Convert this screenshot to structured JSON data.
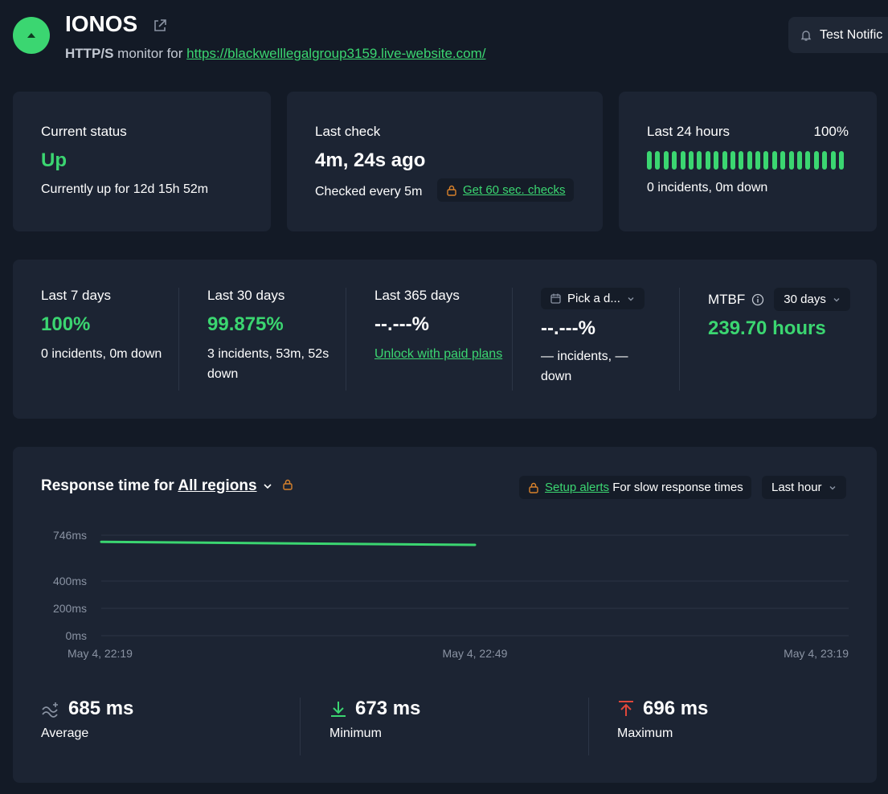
{
  "header": {
    "title": "IONOS",
    "protocol": "HTTP/S",
    "monitor_for": " monitor for ",
    "url": "https://blackwelllegalgroup3159.live-website.com/",
    "test_button": "Test Notific",
    "status_color": "#3bd671"
  },
  "current_status": {
    "label": "Current status",
    "value": "Up",
    "detail": "Currently up for 12d 15h 52m"
  },
  "last_check": {
    "label": "Last check",
    "value": "4m, 24s ago",
    "detail": "Checked every 5m",
    "upgrade_link": "Get 60 sec. checks"
  },
  "last_24h": {
    "label": "Last 24 hours",
    "percent": "100%",
    "detail": "0 incidents, 0m down",
    "bar_count": 24
  },
  "uptime": {
    "last7": {
      "label": "Last 7 days",
      "value": "100%",
      "detail": "0 incidents, 0m down"
    },
    "last30": {
      "label": "Last 30 days",
      "value": "99.875%",
      "detail": "3 incidents, 53m, 52s down"
    },
    "last365": {
      "label": "Last 365 days",
      "value": "--.---%",
      "link": "Unlock with paid plans"
    },
    "custom": {
      "picker": "Pick a d...",
      "value": "--.---%",
      "detail": "— incidents, — down"
    },
    "mtbf": {
      "label": "MTBF",
      "range": "30 days",
      "value": "239.70 hours"
    }
  },
  "response": {
    "title_prefix": "Response time for ",
    "regions": "All regions",
    "alert_link": "Setup alerts",
    "alert_text": " For slow response times",
    "range": "Last hour",
    "stats": {
      "average": {
        "value": "685 ms",
        "label": "Average"
      },
      "minimum": {
        "value": "673 ms",
        "label": "Minimum"
      },
      "maximum": {
        "value": "696 ms",
        "label": "Maximum"
      }
    }
  },
  "chart_data": {
    "type": "line",
    "y_ticks": [
      "746ms",
      "400ms",
      "200ms",
      "0ms"
    ],
    "x_ticks": [
      "May 4, 22:19",
      "May 4, 22:49",
      "May 4, 23:19"
    ],
    "series": [
      {
        "x": [
          "May 4, 22:19",
          "May 4, 22:49"
        ],
        "values": [
          696,
          673
        ]
      }
    ],
    "ylim": [
      0,
      746
    ],
    "color": "#3bd671"
  }
}
